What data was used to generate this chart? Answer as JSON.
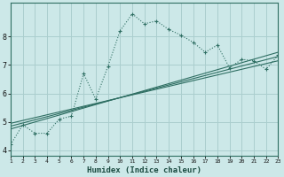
{
  "xlabel": "Humidex (Indice chaleur)",
  "ylabel": "",
  "bg_color": "#cce8e8",
  "grid_color": "#aacece",
  "line_color": "#2e6e62",
  "xlim": [
    1,
    23
  ],
  "ylim": [
    3.8,
    9.2
  ],
  "xticks": [
    1,
    2,
    3,
    4,
    5,
    6,
    7,
    8,
    9,
    10,
    11,
    12,
    13,
    14,
    15,
    16,
    17,
    18,
    19,
    20,
    21,
    22,
    23
  ],
  "yticks": [
    4,
    5,
    6,
    7,
    8
  ],
  "series1_x": [
    1,
    2,
    3,
    4,
    5,
    6,
    7,
    8,
    9,
    10,
    11,
    12,
    13,
    14,
    15,
    16,
    17,
    18,
    19,
    20,
    21,
    22,
    23
  ],
  "series1_y": [
    4.2,
    4.9,
    4.6,
    4.6,
    5.1,
    5.2,
    6.7,
    5.8,
    6.95,
    8.2,
    8.8,
    8.45,
    8.55,
    8.25,
    8.05,
    7.8,
    7.45,
    7.7,
    6.9,
    7.2,
    7.15,
    6.85,
    7.35
  ],
  "trend1_x": [
    1,
    23
  ],
  "trend1_y": [
    4.75,
    7.45
  ],
  "trend2_x": [
    1,
    23
  ],
  "trend2_y": [
    4.85,
    7.3
  ],
  "trend3_x": [
    1,
    23
  ],
  "trend3_y": [
    4.95,
    7.15
  ]
}
